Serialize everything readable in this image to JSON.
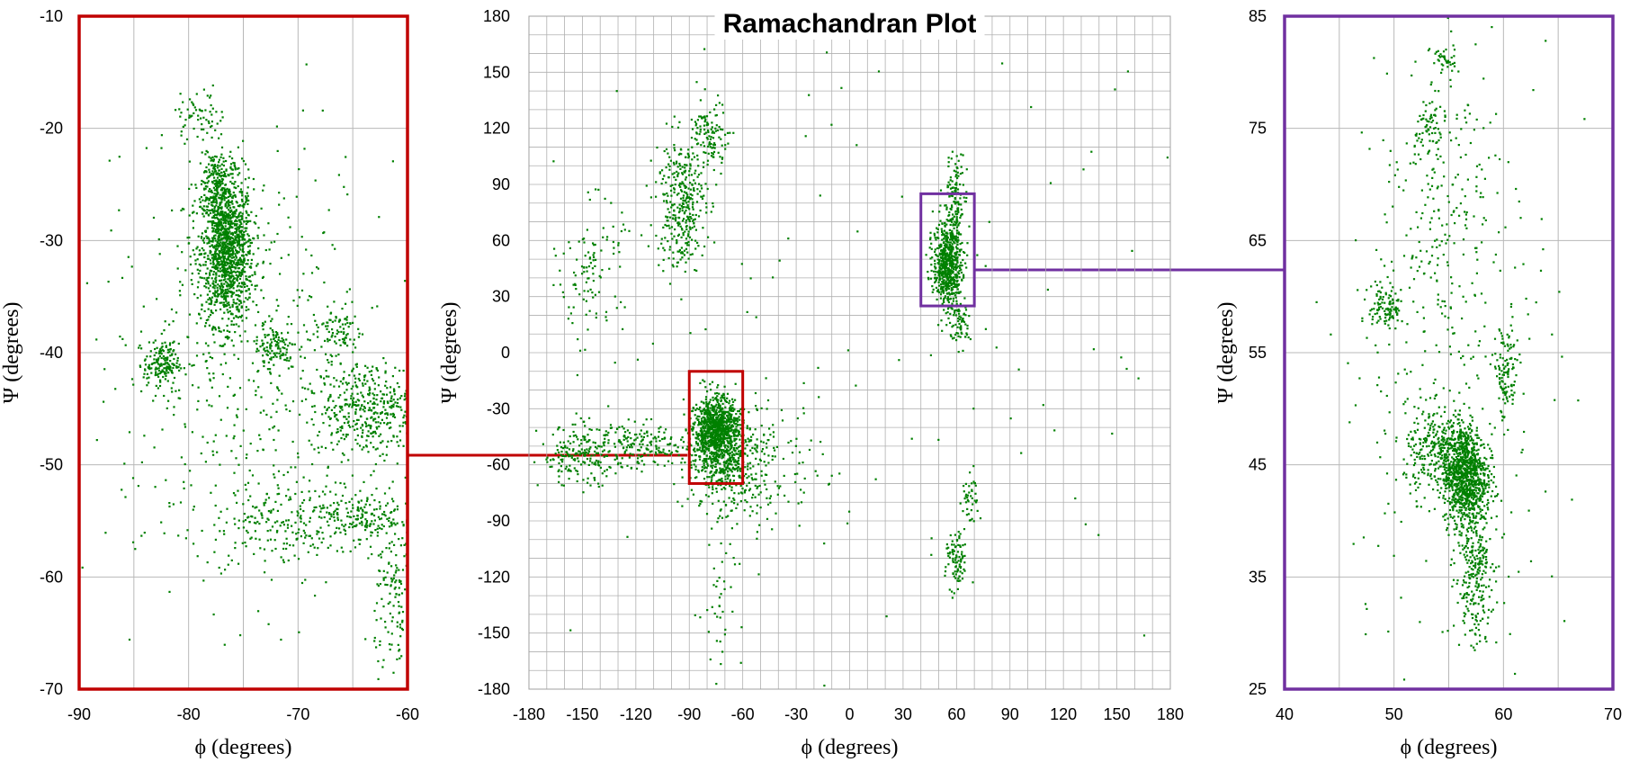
{
  "chart_data": [
    {
      "type": "scatter",
      "id": "left-zoom",
      "xlabel": "ϕ (degrees)",
      "ylabel": "Ψ (degrees)",
      "xlim": [
        -90,
        -60
      ],
      "ylim": [
        -70,
        -10
      ],
      "xticks": [
        -90,
        -80,
        -70,
        -60
      ],
      "yticks": [
        -70,
        -60,
        -50,
        -40,
        -30,
        -20,
        -10
      ],
      "grid": true,
      "frame_color": "#c00000",
      "point_color": "#008000",
      "clusters": [
        {
          "cx": -76.5,
          "cy": -31,
          "sx": 1.2,
          "sy": 3.2,
          "n": 1300
        },
        {
          "cx": -77.5,
          "cy": -25,
          "sx": 0.8,
          "sy": 1.6,
          "n": 220
        },
        {
          "cx": -82.5,
          "cy": -41,
          "sx": 0.8,
          "sy": 0.9,
          "n": 160
        },
        {
          "cx": -72,
          "cy": -39.5,
          "sx": 1.0,
          "sy": 1.0,
          "n": 100
        },
        {
          "cx": -63.5,
          "cy": -45,
          "sx": 2.5,
          "sy": 2.2,
          "n": 420
        },
        {
          "cx": -66.5,
          "cy": -38,
          "sx": 1.2,
          "sy": 1.0,
          "n": 80
        },
        {
          "cx": -64,
          "cy": -54.5,
          "sx": 1.8,
          "sy": 1.0,
          "n": 120
        },
        {
          "cx": -70,
          "cy": -55,
          "sx": 4.0,
          "sy": 1.8,
          "n": 250
        },
        {
          "cx": -79,
          "cy": -19,
          "sx": 1.2,
          "sy": 1.0,
          "n": 60
        },
        {
          "cx": -61,
          "cy": -62,
          "sx": 1.0,
          "sy": 4.0,
          "n": 150
        },
        {
          "cx": -75,
          "cy": -42,
          "sx": 7.0,
          "sy": 10.0,
          "n": 520
        }
      ]
    },
    {
      "type": "scatter",
      "id": "main",
      "title": "Ramachandran Plot",
      "xlabel": "ϕ (degrees)",
      "ylabel": "Ψ (degrees)",
      "xlim": [
        -180,
        180
      ],
      "ylim": [
        -180,
        180
      ],
      "xticks": [
        -180,
        -150,
        -120,
        -90,
        -60,
        -30,
        0,
        30,
        60,
        90,
        120,
        150,
        180
      ],
      "yticks": [
        -180,
        -150,
        -120,
        -90,
        -60,
        -30,
        0,
        30,
        60,
        90,
        120,
        150,
        180
      ],
      "grid_step": 10,
      "point_color": "#008000",
      "zoom_boxes": [
        {
          "x": [
            -90,
            -60
          ],
          "y": [
            -70,
            -10
          ],
          "color": "#c00000"
        },
        {
          "x": [
            40,
            70
          ],
          "y": [
            25,
            85
          ],
          "color": "#7030a0"
        }
      ],
      "clusters": [
        {
          "cx": -75,
          "cy": -42,
          "sx": 6.0,
          "sy": 9.0,
          "n": 900
        },
        {
          "cx": -68,
          "cy": -55,
          "sx": 12.0,
          "sy": 14.0,
          "n": 350
        },
        {
          "cx": -150,
          "cy": -55,
          "sx": 12.0,
          "sy": 8.0,
          "n": 220
        },
        {
          "cx": -115,
          "cy": -50,
          "sx": 12.0,
          "sy": 6.0,
          "n": 150
        },
        {
          "cx": -55,
          "cy": -60,
          "sx": 20.0,
          "sy": 18.0,
          "n": 200
        },
        {
          "cx": -95,
          "cy": 80,
          "sx": 7.0,
          "sy": 18.0,
          "n": 340
        },
        {
          "cx": -78,
          "cy": 115,
          "sx": 5.0,
          "sy": 10.0,
          "n": 120
        },
        {
          "cx": -145,
          "cy": 45,
          "sx": 9.0,
          "sy": 18.0,
          "n": 110
        },
        {
          "cx": 55,
          "cy": 48,
          "sx": 4.0,
          "sy": 12.0,
          "n": 650
        },
        {
          "cx": 60,
          "cy": 85,
          "sx": 3.0,
          "sy": 10.0,
          "n": 110
        },
        {
          "cx": 62,
          "cy": 15,
          "sx": 3.0,
          "sy": 6.0,
          "n": 60
        },
        {
          "cx": 60,
          "cy": -112,
          "sx": 3.0,
          "sy": 8.0,
          "n": 90
        },
        {
          "cx": 68,
          "cy": -80,
          "sx": 2.5,
          "sy": 8.0,
          "n": 40
        },
        {
          "cx": -75,
          "cy": -140,
          "sx": 5.0,
          "sy": 25.0,
          "n": 40
        },
        {
          "cx": 0,
          "cy": 0,
          "sx": 110.0,
          "sy": 110.0,
          "n": 120
        }
      ]
    },
    {
      "type": "scatter",
      "id": "right-zoom",
      "xlabel": "ϕ (degrees)",
      "ylabel": "Ψ (degrees)",
      "xlim": [
        40,
        70
      ],
      "ylim": [
        25,
        85
      ],
      "xticks": [
        40,
        50,
        60,
        70
      ],
      "yticks": [
        25,
        35,
        45,
        55,
        65,
        75,
        85
      ],
      "grid": true,
      "frame_color": "#7030a0",
      "point_color": "#008000",
      "clusters": [
        {
          "cx": 56.5,
          "cy": 44,
          "sx": 1.0,
          "sy": 2.2,
          "n": 900
        },
        {
          "cx": 54.5,
          "cy": 46,
          "sx": 1.8,
          "sy": 2.0,
          "n": 380
        },
        {
          "cx": 57.5,
          "cy": 37,
          "sx": 0.8,
          "sy": 2.5,
          "n": 220
        },
        {
          "cx": 60.2,
          "cy": 53,
          "sx": 0.6,
          "sy": 2.2,
          "n": 120
        },
        {
          "cx": 49.3,
          "cy": 59,
          "sx": 0.8,
          "sy": 1.0,
          "n": 110
        },
        {
          "cx": 53.3,
          "cy": 75,
          "sx": 0.7,
          "sy": 1.5,
          "n": 70
        },
        {
          "cx": 54.5,
          "cy": 81,
          "sx": 0.6,
          "sy": 0.8,
          "n": 40
        },
        {
          "cx": 55,
          "cy": 66,
          "sx": 2.5,
          "sy": 5.0,
          "n": 160
        },
        {
          "cx": 57.5,
          "cy": 32,
          "sx": 0.8,
          "sy": 2.0,
          "n": 60
        },
        {
          "cx": 55,
          "cy": 55,
          "sx": 5.0,
          "sy": 15.0,
          "n": 240
        }
      ]
    }
  ]
}
